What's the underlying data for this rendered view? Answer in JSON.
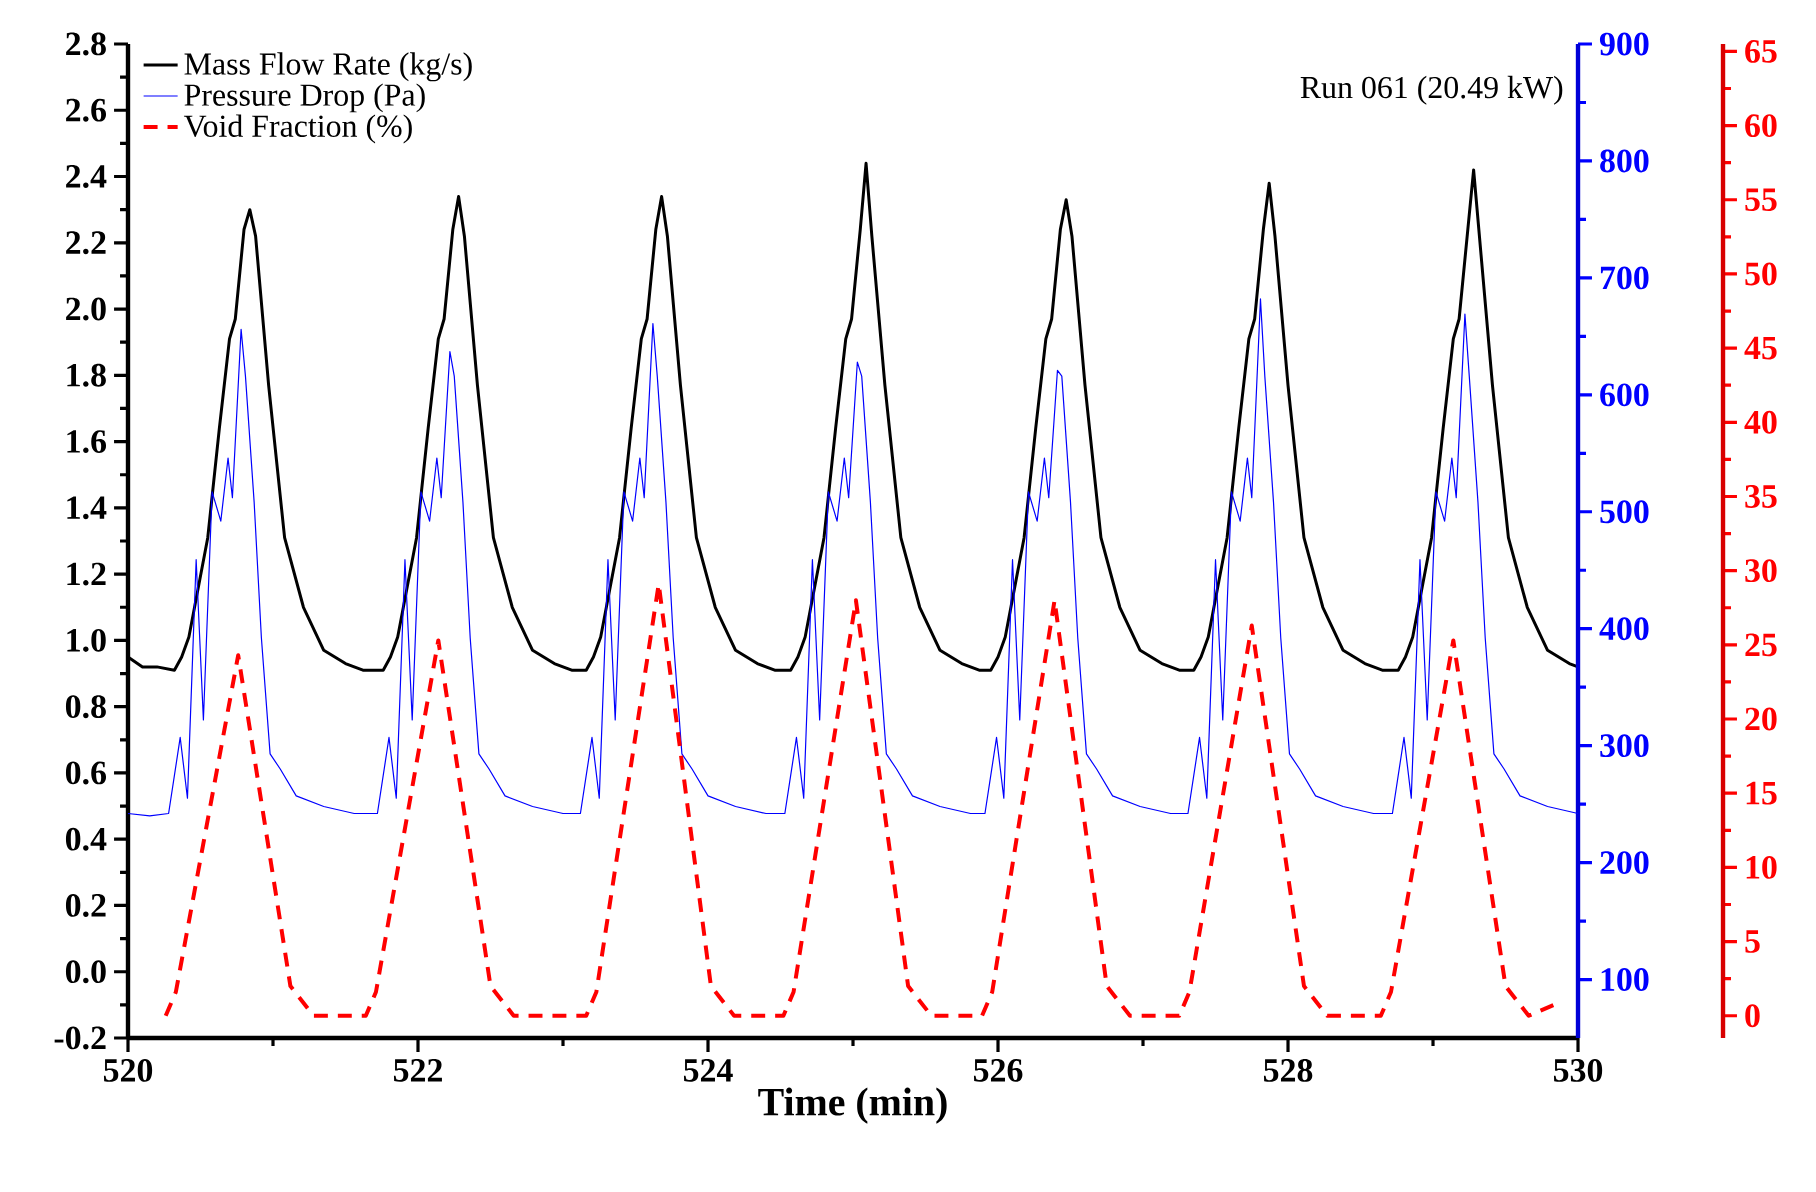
{
  "chart_data": {
    "type": "line",
    "xlabel": "Time (min)",
    "xlim": [
      520,
      530
    ],
    "xticks": [
      520,
      522,
      524,
      526,
      528,
      530
    ],
    "ylim": [
      -0.2,
      2.8
    ],
    "yticks": [
      -0.2,
      {
        "value": 0,
        "label": "0.0"
      },
      0.2,
      0.4,
      0.6,
      0.8,
      {
        "value": 1,
        "label": "1.0"
      },
      1.2,
      1.4,
      1.6,
      1.8,
      {
        "value": 2,
        "label": "2.0"
      },
      2.2,
      2.4,
      2.6,
      2.8
    ],
    "y2lim": [
      50,
      900
    ],
    "y2ticks": [
      100,
      200,
      300,
      400,
      500,
      600,
      700,
      800,
      900
    ],
    "y3lim": [
      -1.5,
      65.5
    ],
    "y3ticks": [
      0,
      5,
      10,
      15,
      20,
      25,
      30,
      35,
      40,
      45,
      50,
      55,
      60,
      65
    ],
    "legend": "top left",
    "annotations": [
      "Run 061 (20.49 kW)"
    ],
    "series": [
      {
        "name": "Mass Flow Rate (kg/s)",
        "color": "#000000",
        "line_style": "solid",
        "axis": "y",
        "x": [
          520.0,
          520.1,
          520.2,
          520.32,
          520.37,
          520.42,
          520.55,
          520.63,
          520.7,
          520.74,
          520.8,
          520.84,
          520.88,
          520.97,
          521.08,
          521.21,
          521.35,
          521.5,
          521.62,
          521.76,
          521.81,
          521.86,
          521.99,
          522.07,
          522.14,
          522.18,
          522.24,
          522.28,
          522.32,
          522.41,
          522.52,
          522.65,
          522.79,
          522.94,
          523.06,
          523.16,
          523.21,
          523.26,
          523.39,
          523.47,
          523.54,
          523.58,
          523.64,
          523.68,
          523.72,
          523.81,
          523.92,
          524.05,
          524.19,
          524.34,
          524.46,
          524.57,
          524.62,
          524.67,
          524.8,
          524.88,
          524.95,
          524.99,
          525.05,
          525.09,
          525.13,
          525.22,
          525.33,
          525.46,
          525.6,
          525.75,
          525.87,
          525.95,
          526.0,
          526.05,
          526.18,
          526.26,
          526.33,
          526.37,
          526.43,
          526.47,
          526.51,
          526.6,
          526.71,
          526.84,
          526.98,
          527.13,
          527.25,
          527.35,
          527.4,
          527.45,
          527.58,
          527.66,
          527.73,
          527.77,
          527.83,
          527.87,
          527.91,
          528.0,
          528.11,
          528.24,
          528.38,
          528.53,
          528.65,
          528.76,
          528.81,
          528.86,
          528.99,
          529.07,
          529.14,
          529.18,
          529.24,
          529.28,
          529.32,
          529.41,
          529.52,
          529.65,
          529.79,
          529.94,
          530.0
        ],
        "values": [
          0.95,
          0.92,
          0.92,
          0.91,
          0.95,
          1.01,
          1.31,
          1.64,
          1.91,
          1.97,
          2.24,
          2.3,
          2.22,
          1.77,
          1.31,
          1.1,
          0.97,
          0.93,
          0.91,
          0.91,
          0.95,
          1.01,
          1.31,
          1.64,
          1.91,
          1.97,
          2.24,
          2.34,
          2.22,
          1.77,
          1.31,
          1.1,
          0.97,
          0.93,
          0.91,
          0.91,
          0.95,
          1.01,
          1.31,
          1.64,
          1.91,
          1.97,
          2.24,
          2.34,
          2.22,
          1.77,
          1.31,
          1.1,
          0.97,
          0.93,
          0.91,
          0.91,
          0.95,
          1.01,
          1.31,
          1.64,
          1.91,
          1.97,
          2.24,
          2.44,
          2.22,
          1.77,
          1.31,
          1.1,
          0.97,
          0.93,
          0.91,
          0.91,
          0.95,
          1.01,
          1.31,
          1.64,
          1.91,
          1.97,
          2.24,
          2.33,
          2.22,
          1.77,
          1.31,
          1.1,
          0.97,
          0.93,
          0.91,
          0.91,
          0.95,
          1.01,
          1.31,
          1.64,
          1.91,
          1.97,
          2.24,
          2.38,
          2.22,
          1.77,
          1.31,
          1.1,
          0.97,
          0.93,
          0.91,
          0.91,
          0.95,
          1.01,
          1.31,
          1.64,
          1.91,
          1.97,
          2.24,
          2.42,
          2.22,
          1.77,
          1.31,
          1.1,
          0.97,
          0.93,
          0.92
        ]
      },
      {
        "name": "Pressure Drop (Pa)",
        "color": "#0000ff",
        "line_style": "solid",
        "axis": "y2",
        "x": [
          520.0,
          520.15,
          520.28,
          520.36,
          520.41,
          520.47,
          520.52,
          520.58,
          520.64,
          520.69,
          520.72,
          520.78,
          520.81,
          520.87,
          520.92,
          520.98,
          521.05,
          521.16,
          521.35,
          521.56,
          521.72,
          521.8,
          521.85,
          521.91,
          521.96,
          522.02,
          522.08,
          522.13,
          522.16,
          522.22,
          522.25,
          522.31,
          522.36,
          522.42,
          522.49,
          522.6,
          522.79,
          523.0,
          523.12,
          523.2,
          523.25,
          523.31,
          523.36,
          523.42,
          523.48,
          523.53,
          523.56,
          523.62,
          523.65,
          523.71,
          523.76,
          523.82,
          523.89,
          524.0,
          524.19,
          524.4,
          524.53,
          524.61,
          524.66,
          524.72,
          524.77,
          524.83,
          524.89,
          524.94,
          524.97,
          525.03,
          525.06,
          525.12,
          525.17,
          525.23,
          525.3,
          525.41,
          525.6,
          525.81,
          525.91,
          525.99,
          526.04,
          526.1,
          526.15,
          526.21,
          526.27,
          526.32,
          526.35,
          526.41,
          526.44,
          526.5,
          526.55,
          526.61,
          526.68,
          526.79,
          526.98,
          527.19,
          527.31,
          527.39,
          527.44,
          527.5,
          527.55,
          527.61,
          527.67,
          527.72,
          527.75,
          527.81,
          527.84,
          527.9,
          527.95,
          528.01,
          528.08,
          528.19,
          528.38,
          528.59,
          528.72,
          528.8,
          528.85,
          528.91,
          528.96,
          529.02,
          529.08,
          529.13,
          529.16,
          529.22,
          529.25,
          529.31,
          529.36,
          529.42,
          529.49,
          529.6,
          529.79,
          530.0
        ],
        "values": [
          242,
          240,
          242,
          307,
          255,
          459,
          322,
          517,
          492,
          546,
          512,
          656,
          616,
          508,
          392,
          293,
          280,
          257,
          248,
          242,
          242,
          307,
          255,
          459,
          322,
          517,
          492,
          546,
          512,
          637,
          616,
          508,
          392,
          293,
          280,
          257,
          248,
          242,
          242,
          307,
          255,
          459,
          322,
          517,
          492,
          546,
          512,
          661,
          616,
          508,
          392,
          293,
          280,
          257,
          248,
          242,
          242,
          307,
          255,
          459,
          322,
          517,
          492,
          546,
          512,
          628,
          616,
          508,
          392,
          293,
          280,
          257,
          248,
          242,
          242,
          307,
          255,
          459,
          322,
          517,
          492,
          546,
          512,
          621,
          616,
          508,
          392,
          293,
          280,
          257,
          248,
          242,
          242,
          307,
          255,
          459,
          322,
          517,
          492,
          546,
          512,
          682,
          616,
          508,
          392,
          293,
          280,
          257,
          248,
          242,
          242,
          307,
          255,
          459,
          322,
          517,
          492,
          546,
          512,
          669,
          616,
          508,
          392,
          293,
          280,
          257,
          248,
          242
        ]
      },
      {
        "name": "Void Fraction (%)",
        "color": "#ff0000",
        "line_style": "dashed",
        "axis": "y3",
        "x": [
          520.26,
          520.33,
          520.76,
          521.12,
          521.28,
          521.64,
          521.71,
          522.14,
          522.5,
          522.66,
          523.16,
          523.23,
          523.66,
          524.02,
          524.18,
          524.52,
          524.59,
          525.02,
          525.38,
          525.54,
          525.89,
          525.96,
          526.39,
          526.75,
          526.91,
          527.25,
          527.32,
          527.75,
          528.11,
          528.27,
          528.64,
          528.71,
          529.14,
          529.5,
          529.66,
          529.85
        ],
        "values": [
          0,
          1.6,
          24.3,
          2.0,
          0,
          0,
          1.6,
          25.3,
          2.0,
          0,
          0,
          1.6,
          29.1,
          2.0,
          0,
          0,
          1.6,
          28.0,
          2.0,
          0,
          0,
          1.6,
          28.0,
          2.0,
          0,
          0,
          1.6,
          26.3,
          2.0,
          0,
          0,
          1.6,
          25.3,
          2.0,
          0,
          0.8
        ]
      }
    ]
  }
}
